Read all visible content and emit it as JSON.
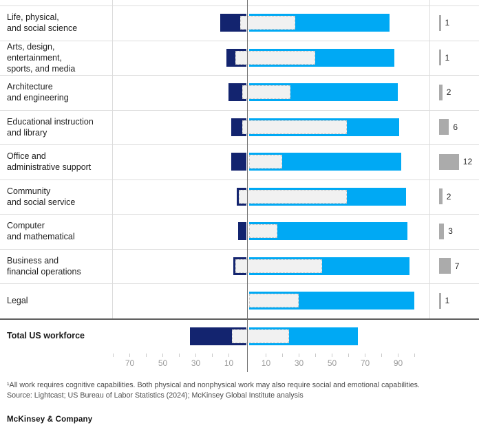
{
  "colors": {
    "dark_blue": "#13246f",
    "light_blue": "#00a9f4",
    "overlay_fill": "#f1f1f1",
    "overlay_border": "#c6c6c6",
    "gray_note_bar": "#ababab",
    "grid_line": "#dcdcdc",
    "center_line": "#6f6f6f",
    "heavy_divider": "#5e5e5e",
    "tick_label": "#9a9a9a"
  },
  "chart_data": {
    "type": "bar",
    "subtype": "horizontal-diverging-with-dashed-overlay",
    "grid": "row-separators-only",
    "axis": {
      "left_labeled_ticks": [
        70,
        50,
        30,
        10
      ],
      "right_labeled_ticks": [
        10,
        30,
        50,
        70,
        90
      ],
      "left_minor_ticks": [
        80,
        60,
        40,
        20
      ],
      "right_minor_ticks": [
        20,
        40,
        60,
        80,
        100
      ],
      "left_range": [
        0,
        80
      ],
      "right_range": [
        0,
        100
      ]
    },
    "rows": [
      {
        "label": [
          "Life, physical,",
          "and social science"
        ],
        "left_value": 16,
        "right_value": 85,
        "overlay": [
          -4,
          28
        ],
        "note_value": 1
      },
      {
        "label": [
          "Arts, design, entertainment,",
          "sports, and media"
        ],
        "left_value": 12,
        "right_value": 88,
        "overlay": [
          -7,
          40
        ],
        "note_value": 1
      },
      {
        "label": [
          "Architecture",
          "and engineering"
        ],
        "left_value": 11,
        "right_value": 90,
        "overlay": [
          -3,
          25
        ],
        "note_value": 2
      },
      {
        "label": [
          "Educational instruction",
          "and library"
        ],
        "left_value": 9,
        "right_value": 91,
        "overlay": [
          -3,
          59
        ],
        "note_value": 6
      },
      {
        "label": [
          "Office and",
          "administrative support"
        ],
        "left_value": 9,
        "right_value": 92,
        "overlay": [
          0,
          20
        ],
        "note_value": 12
      },
      {
        "label": [
          "Community",
          "and social service"
        ],
        "left_value": 6,
        "right_value": 95,
        "overlay": [
          -5,
          59
        ],
        "note_value": 2
      },
      {
        "label": [
          "Computer",
          "and mathematical"
        ],
        "left_value": 5,
        "right_value": 96,
        "overlay": [
          0,
          17
        ],
        "note_value": 3
      },
      {
        "label": [
          "Business and",
          "financial operations"
        ],
        "left_value": 8,
        "right_value": 97,
        "overlay": [
          -7,
          44
        ],
        "note_value": 7
      },
      {
        "label": [
          "Legal"
        ],
        "left_value": 0,
        "right_value": 100,
        "overlay": [
          0,
          30
        ],
        "note_value": 1
      }
    ],
    "total_row": {
      "label": "Total US workforce",
      "left_value": 34,
      "right_value": 66,
      "overlay": [
        -9,
        24
      ]
    }
  },
  "footnote_line1": "¹All work requires cognitive capabilities. Both physical and nonphysical work may also require social and emotional capabilities.",
  "footnote_line2": "Source: Lightcast; US Bureau of Labor Statistics (2024); McKinsey Global Institute analysis",
  "logo_text": "McKinsey & Company"
}
